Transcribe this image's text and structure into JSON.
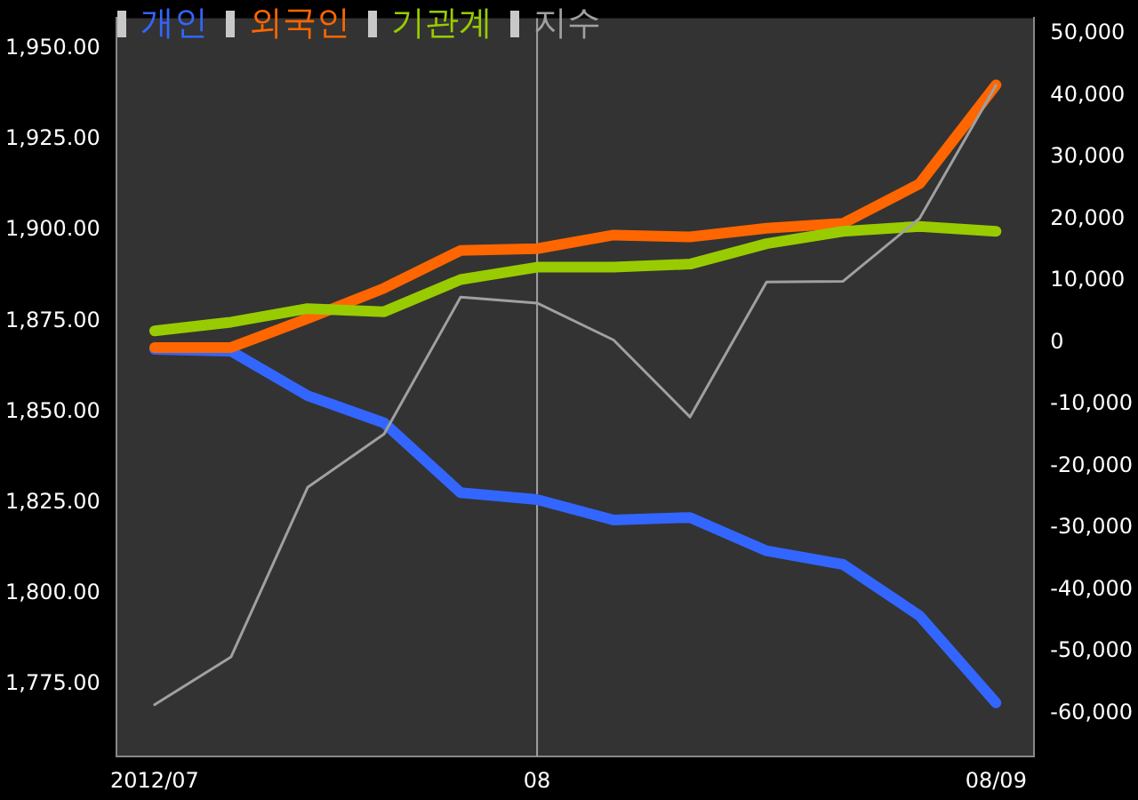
{
  "chart_data": {
    "type": "line",
    "categories": [
      "2012/07",
      null,
      null,
      null,
      null,
      "08",
      null,
      null,
      null,
      null,
      null,
      "08/09"
    ],
    "series": [
      {
        "name": "개인",
        "color": "#3366ff",
        "axis": "y2",
        "values": [
          -1100,
          -1400,
          -8600,
          -13000,
          -24300,
          -25400,
          -28700,
          -28300,
          -33700,
          -35900,
          -44200,
          -58300
        ]
      },
      {
        "name": "외국인",
        "color": "#ff6600",
        "axis": "y2",
        "values": [
          -800,
          -800,
          3900,
          8800,
          14900,
          15200,
          17400,
          17100,
          18500,
          19300,
          25700,
          41700
        ]
      },
      {
        "name": "기관계",
        "color": "#99cc00",
        "axis": "y2",
        "values": [
          1900,
          3300,
          5500,
          5000,
          10200,
          12200,
          12200,
          12700,
          16000,
          18000,
          18800,
          18000
        ]
      },
      {
        "name": "지수",
        "color": "#a0a0a0",
        "values": [
          1769.3,
          1782.5,
          1829.2,
          1843.9,
          1881.6,
          1880.0,
          1869.8,
          1848.6,
          1885.8,
          1886.0,
          1903.3,
          1940.0
        ]
      }
    ],
    "ylim": [
      1755,
      1958.5
    ],
    "yticks": [
      {
        "value": 1775,
        "label": "1,775.00"
      },
      {
        "value": 1800,
        "label": "1,800.00"
      },
      {
        "value": 1825,
        "label": "1,825.00"
      },
      {
        "value": 1850,
        "label": "1,850.00"
      },
      {
        "value": 1875,
        "label": "1,875.00"
      },
      {
        "value": 1900,
        "label": "1,900.00"
      },
      {
        "value": 1925,
        "label": "1,925.00"
      },
      {
        "value": 1950,
        "label": "1,950.00"
      }
    ],
    "y2lim": [
      -67000,
      52500
    ],
    "y2ticks": [
      {
        "value": -60000,
        "label": "-60,000"
      },
      {
        "value": -50000,
        "label": "-50,000"
      },
      {
        "value": -40000,
        "label": "-40,000"
      },
      {
        "value": -30000,
        "label": "-30,000"
      },
      {
        "value": -20000,
        "label": "-20,000"
      },
      {
        "value": -10000,
        "label": "-10,000"
      },
      0,
      {
        "value": 10000,
        "label": "10,000"
      },
      {
        "value": 20000,
        "label": "20,000"
      },
      {
        "value": 30000,
        "label": "30,000"
      },
      {
        "value": 40000,
        "label": "40,000"
      },
      {
        "value": 50000,
        "label": "50,000"
      }
    ],
    "ref_lines": [
      {
        "axis": "x",
        "value": "08",
        "color": "#a0a0a0"
      }
    ],
    "legend": "top left",
    "grid": false,
    "marker": "none",
    "line_style": "solid"
  }
}
